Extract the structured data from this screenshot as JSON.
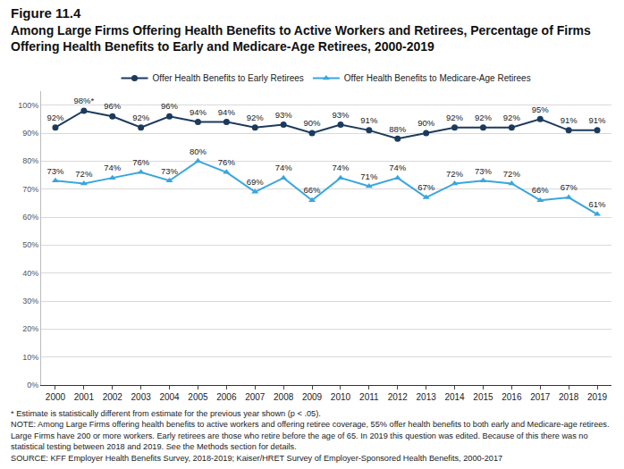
{
  "chart_data": {
    "type": "line",
    "title": "Figure 11.4",
    "subtitle": "Among Large Firms Offering Health Benefits to Active Workers and Retirees, Percentage of Firms Offering Health Benefits to Early and Medicare-Age Retirees, 2000-2019",
    "categories": [
      "2000",
      "2001",
      "2002",
      "2003",
      "2004",
      "2005",
      "2006",
      "2007",
      "2008",
      "2009",
      "2010",
      "2011",
      "2012",
      "2013",
      "2014",
      "2015",
      "2016",
      "2017",
      "2018",
      "2019"
    ],
    "series": [
      {
        "name": "Offer Health Benefits to Early Retirees",
        "color": "#1b3a5c",
        "marker": "circle",
        "values": [
          92,
          98,
          96,
          92,
          96,
          94,
          94,
          92,
          93,
          90,
          93,
          91,
          88,
          90,
          92,
          92,
          92,
          95,
          91,
          91
        ],
        "value_labels": [
          "92%",
          "98%*",
          "96%",
          "92%",
          "96%",
          "94%",
          "94%",
          "92%",
          "93%",
          "90%",
          "93%",
          "91%",
          "88%",
          "90%",
          "92%",
          "92%",
          "92%",
          "95%",
          "91%",
          "91%"
        ]
      },
      {
        "name": "Offer Health Benefits to Medicare-Age Retirees",
        "color": "#3aa6dd",
        "marker": "triangle-up",
        "values": [
          73,
          72,
          74,
          76,
          73,
          80,
          76,
          69,
          74,
          66,
          74,
          71,
          74,
          67,
          72,
          73,
          72,
          66,
          67,
          61
        ],
        "value_labels": [
          "73%",
          "72%",
          "74%",
          "76%",
          "73%",
          "80%",
          "76%",
          "69%",
          "74%",
          "66%",
          "74%",
          "71%",
          "74%",
          "67%",
          "72%",
          "73%",
          "72%",
          "66%",
          "67%",
          "61%"
        ]
      }
    ],
    "ylim": [
      0,
      105
    ],
    "yticks": [
      {
        "value": 0,
        "label": "0%"
      },
      {
        "value": 10,
        "label": "10%"
      },
      {
        "value": 20,
        "label": "20%"
      },
      {
        "value": 30,
        "label": "30%"
      },
      {
        "value": 40,
        "label": "40%"
      },
      {
        "value": 50,
        "label": "50%"
      },
      {
        "value": 60,
        "label": "60%"
      },
      {
        "value": 70,
        "label": "70%"
      },
      {
        "value": 80,
        "label": "80%"
      },
      {
        "value": 90,
        "label": "90%"
      },
      {
        "value": 100,
        "label": "100%"
      }
    ],
    "grid": true,
    "data_labels": true,
    "legend": "top",
    "notes": [
      "* Estimate is statistically different from estimate for the previous year shown (p < .05).",
      "NOTE: Among Large Firms offering health benefits to active workers and offering retiree coverage, 55% offer health benefits to both early and Medicare-age retirees. Large Firms have 200 or more workers. Early retirees are those who retire before the age of 65. In 2019 this question was edited. Because of this there was no statistical testing between 2018 and 2019. See the Methods section for details.",
      "SOURCE: KFF Employer Health Benefits Survey, 2018-2019; Kaiser/HRET Survey of Employer-Sponsored Health Benefits, 2000-2017"
    ]
  }
}
